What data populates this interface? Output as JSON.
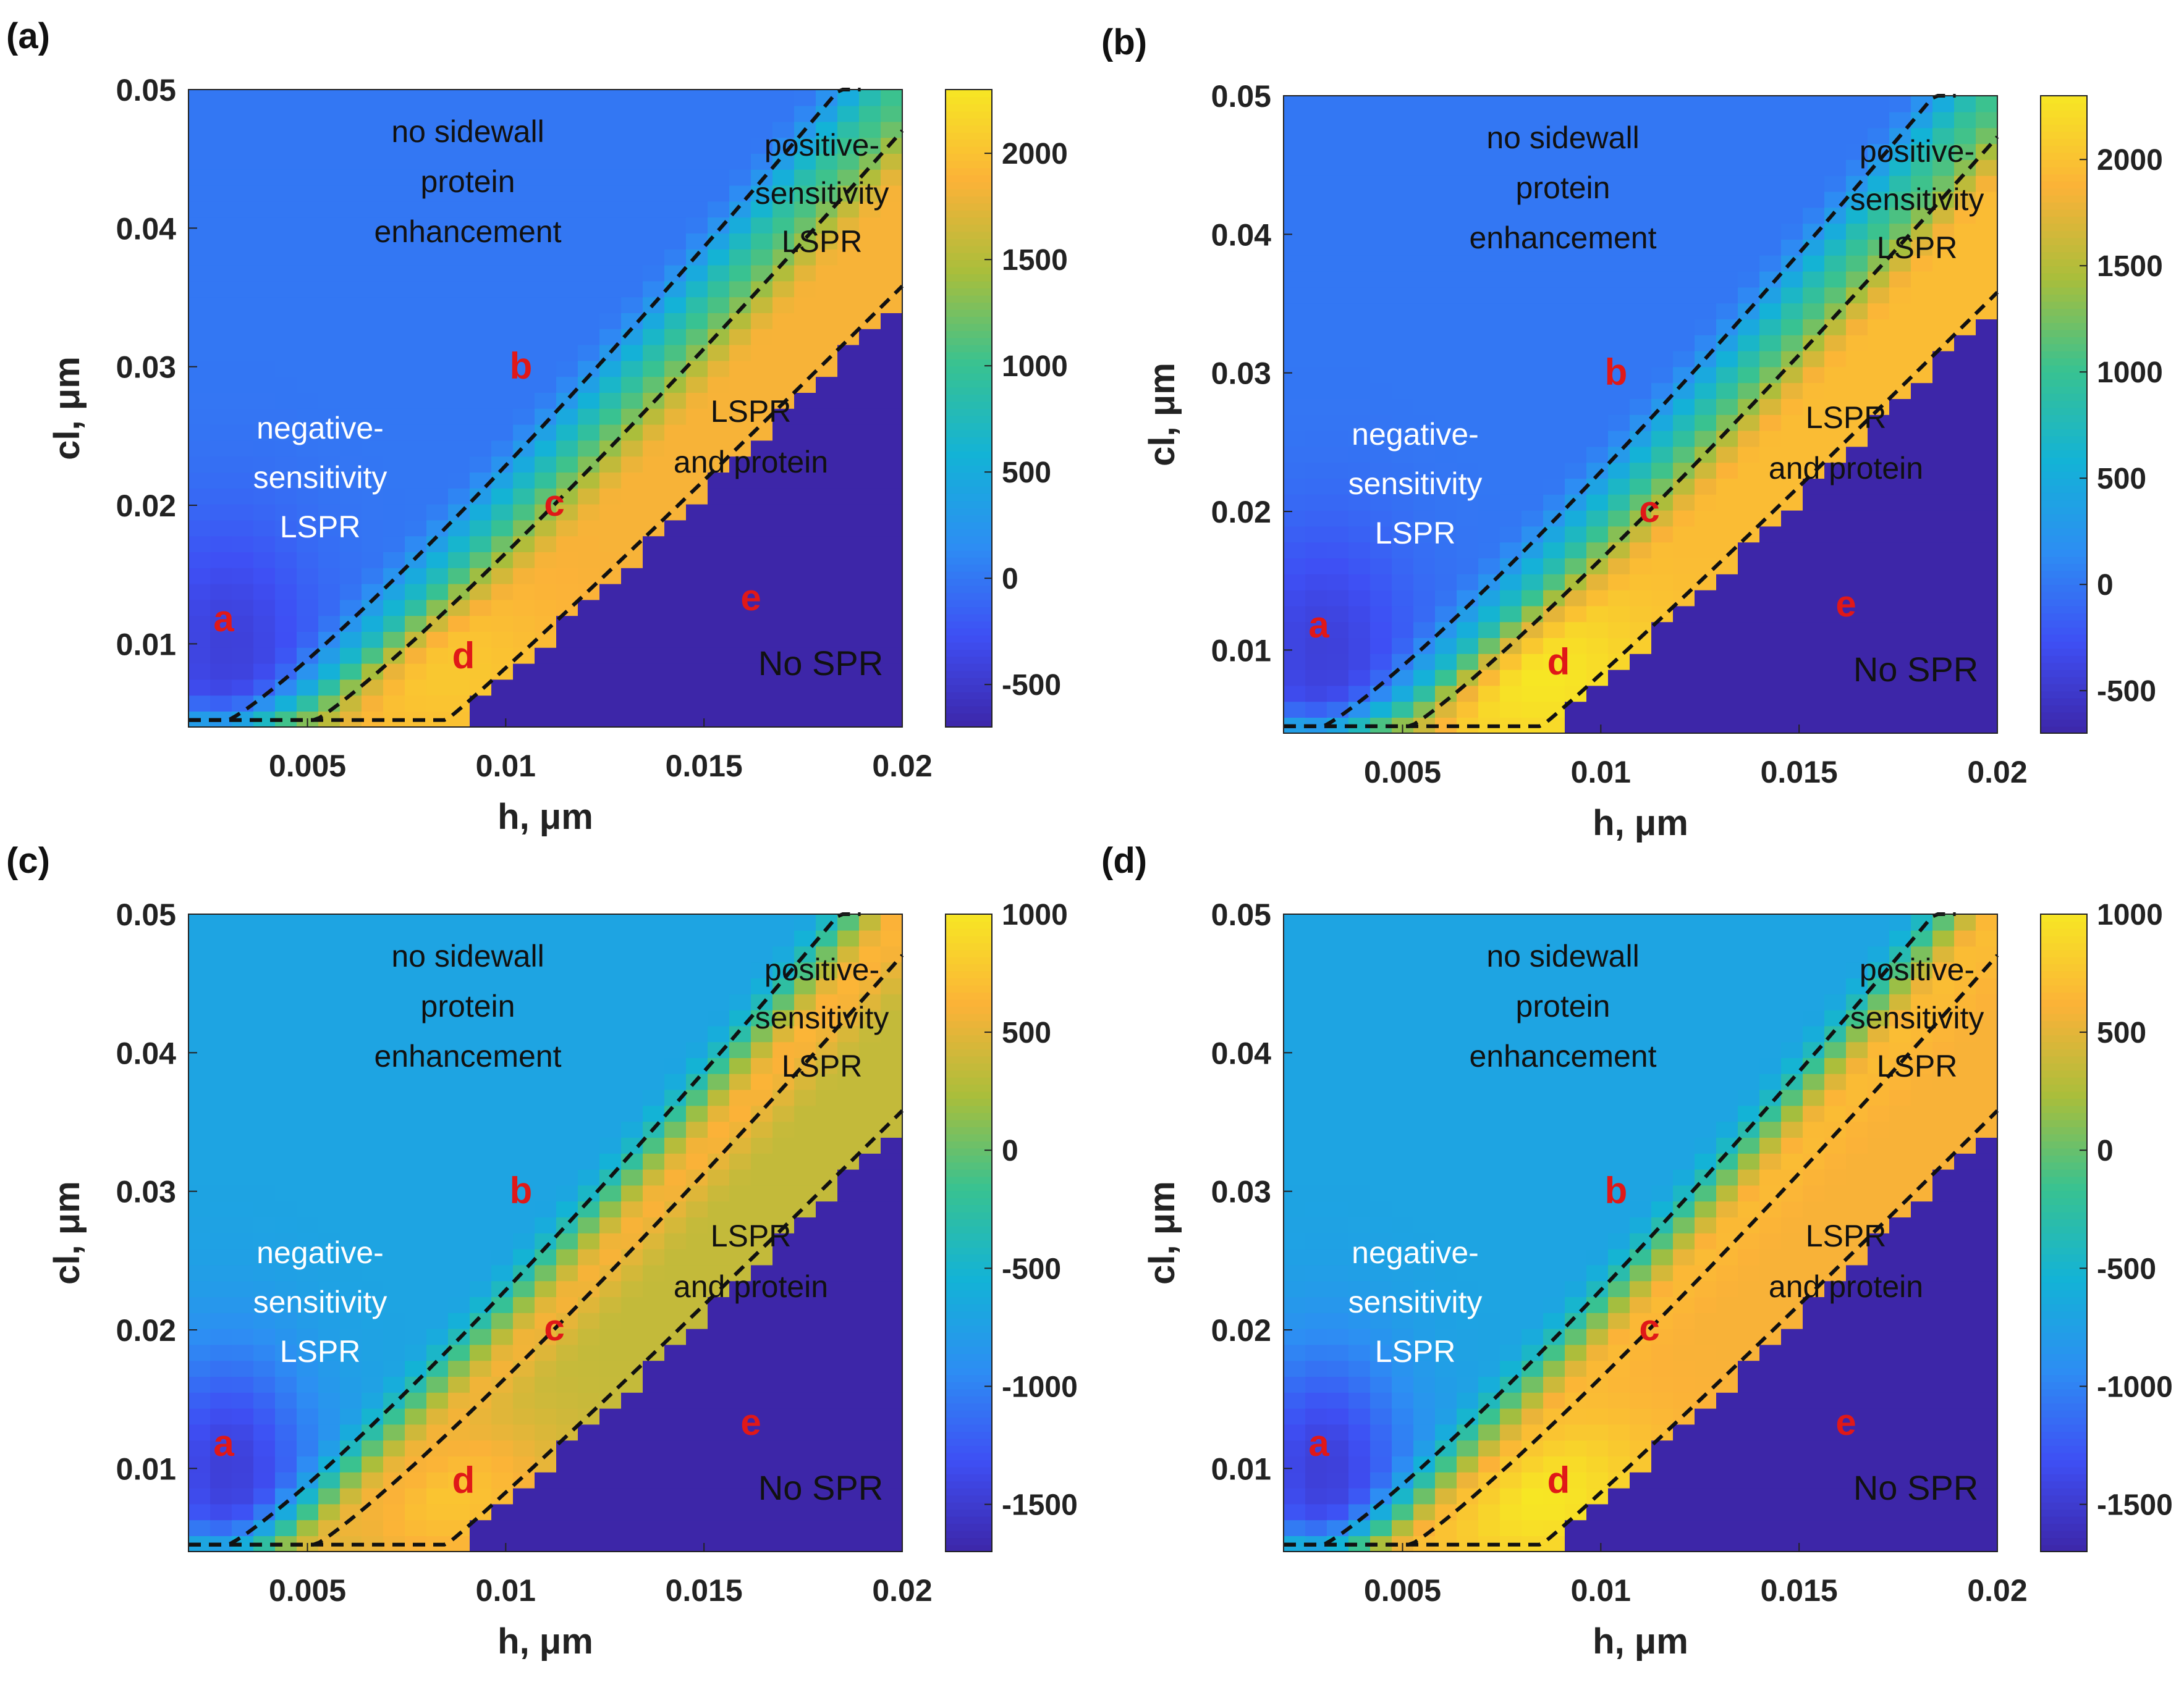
{
  "figure": {
    "colors": {
      "low": "#3d26a8",
      "scale": [
        "#3d26a8",
        "#3e4ff4",
        "#2d8ef3",
        "#13b3d6",
        "#39c290",
        "#a9be3b",
        "#fbb238",
        "#f7e624"
      ],
      "dashed_line": "#111111",
      "marker_text": "#e01818",
      "dark_text": "#111111",
      "light_text": "#ffffff"
    }
  },
  "chart_data": [
    {
      "panel": "(a)",
      "type": "heatmap",
      "xlabel": "h, μm",
      "ylabel": "cl, μm",
      "xlim": [
        0.002,
        0.02
      ],
      "ylim": [
        0.004,
        0.05
      ],
      "xticks": [
        "0.005",
        "0.01",
        "0.015",
        "0.02"
      ],
      "yticks": [
        "0.01",
        "0.02",
        "0.03",
        "0.04",
        "0.05"
      ],
      "colorbar": {
        "ticks": [
          "-500",
          "0",
          "500",
          "1000",
          "1500",
          "2000"
        ],
        "min": -700,
        "max": 2300
      },
      "field": {
        "bg": 0,
        "neg_min": -500,
        "band_lspr": 1050,
        "band_protein": 1850,
        "peak": 2050
      },
      "region_labels": {
        "no_sidewall": [
          "no sidewall",
          "protein",
          "enhancement"
        ],
        "positive": [
          "positive-",
          "sensitivity",
          "LSPR"
        ],
        "negative": [
          "negative-",
          "sensitivity",
          "LSPR"
        ],
        "lspr_protein": [
          "LSPR",
          "and protein"
        ],
        "no_spr": "No SPR"
      },
      "markers": [
        "a",
        "b",
        "c",
        "d",
        "e"
      ]
    },
    {
      "panel": "(b)",
      "type": "heatmap",
      "xlabel": "h, μm",
      "ylabel": "cl, μm",
      "xlim": [
        0.002,
        0.02
      ],
      "ylim": [
        0.004,
        0.05
      ],
      "xticks": [
        "0.005",
        "0.01",
        "0.015",
        "0.02"
      ],
      "yticks": [
        "0.01",
        "0.02",
        "0.03",
        "0.04",
        "0.05"
      ],
      "colorbar": {
        "ticks": [
          "-500",
          "0",
          "500",
          "1000",
          "1500",
          "2000"
        ],
        "min": -700,
        "max": 2300
      },
      "field": {
        "bg": 0,
        "neg_min": -500,
        "band_lspr": 1050,
        "band_protein": 1950,
        "peak": 2300
      },
      "region_labels": {
        "no_sidewall": [
          "no sidewall",
          "protein",
          "enhancement"
        ],
        "positive": [
          "positive-",
          "sensitivity",
          "LSPR"
        ],
        "negative": [
          "negative-",
          "sensitivity",
          "LSPR"
        ],
        "lspr_protein": [
          "LSPR",
          "and protein"
        ],
        "no_spr": "No SPR"
      },
      "markers": [
        "a",
        "b",
        "c",
        "d",
        "e"
      ]
    },
    {
      "panel": "(c)",
      "type": "heatmap",
      "xlabel": "h, μm",
      "ylabel": "cl, μm",
      "xlim": [
        0.002,
        0.02
      ],
      "ylim": [
        0.004,
        0.05
      ],
      "xticks": [
        "0.005",
        "0.01",
        "0.015",
        "0.02"
      ],
      "yticks": [
        "0.01",
        "0.02",
        "0.03",
        "0.04",
        "0.05"
      ],
      "colorbar": {
        "ticks": [
          "-1500",
          "-1000",
          "-500",
          "0",
          "500",
          "1000"
        ],
        "min": -1700,
        "max": 1000
      },
      "field": {
        "bg": -700,
        "neg_min": -1600,
        "band_lspr": 650,
        "band_protein": 350,
        "peak": 750
      },
      "region_labels": {
        "no_sidewall": [
          "no sidewall",
          "protein",
          "enhancement"
        ],
        "positive": [
          "positive-",
          "sensitivity",
          "LSPR"
        ],
        "negative": [
          "negative-",
          "sensitivity",
          "LSPR"
        ],
        "lspr_protein": [
          "LSPR",
          "and protein"
        ],
        "no_spr": "No SPR"
      },
      "markers": [
        "a",
        "b",
        "c",
        "d",
        "e"
      ]
    },
    {
      "panel": "(d)",
      "type": "heatmap",
      "xlabel": "h, μm",
      "ylabel": "cl, μm",
      "xlim": [
        0.002,
        0.02
      ],
      "ylim": [
        0.004,
        0.05
      ],
      "xticks": [
        "0.005",
        "0.01",
        "0.015",
        "0.02"
      ],
      "yticks": [
        "0.01",
        "0.02",
        "0.03",
        "0.04",
        "0.05"
      ],
      "colorbar": {
        "ticks": [
          "-1500",
          "-1000",
          "-500",
          "0",
          "500",
          "1000"
        ],
        "min": -1700,
        "max": 1000
      },
      "field": {
        "bg": -700,
        "neg_min": -1600,
        "band_lspr": 700,
        "band_protein": 600,
        "peak": 1000
      },
      "region_labels": {
        "no_sidewall": [
          "no sidewall",
          "protein",
          "enhancement"
        ],
        "positive": [
          "positive-",
          "sensitivity",
          "LSPR"
        ],
        "negative": [
          "negative-",
          "sensitivity",
          "LSPR"
        ],
        "lspr_protein": [
          "LSPR",
          "and protein"
        ],
        "no_spr": "No SPR"
      },
      "markers": [
        "a",
        "b",
        "c",
        "d",
        "e"
      ]
    }
  ]
}
